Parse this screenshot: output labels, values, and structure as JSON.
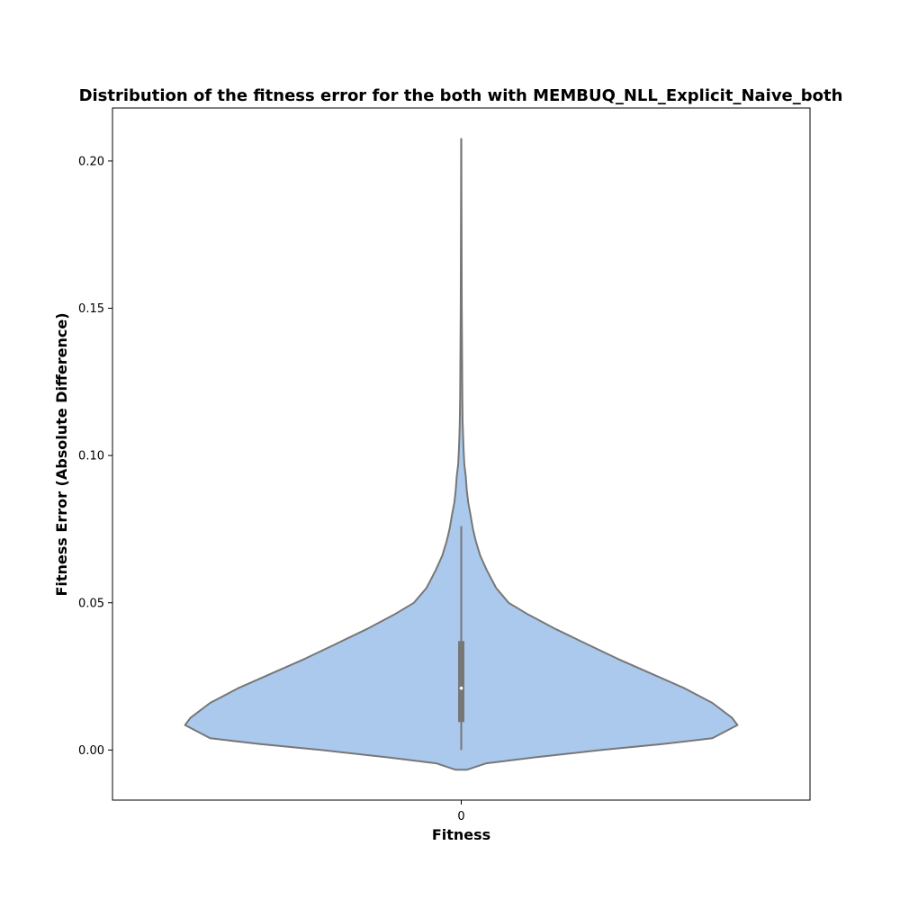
{
  "chart_data": {
    "type": "violin",
    "title": "Distribution of the fitness error for the both with MEMBUQ_NLL_Explicit_Naive_both",
    "xlabel": "Fitness",
    "ylabel": "Fitness Error (Absolute Difference)",
    "categories": [
      "0"
    ],
    "ylim": [
      -0.017,
      0.218
    ],
    "yticks": [
      0.0,
      0.05,
      0.1,
      0.15,
      0.2
    ],
    "ytick_labels": [
      "0.00",
      "0.05",
      "0.10",
      "0.15",
      "0.20"
    ],
    "grid": false,
    "fill_color": "#abc9ec",
    "line_color": "#777777",
    "box": {
      "whisker_low": 0.0,
      "q1": 0.0095,
      "median": 0.021,
      "q3": 0.037,
      "whisker_high": 0.076
    },
    "density_profile": {
      "y": [
        -0.0067,
        -0.0045,
        -0.0025,
        0.0,
        0.002,
        0.004,
        0.0065,
        0.0085,
        0.011,
        0.016,
        0.021,
        0.026,
        0.031,
        0.036,
        0.041,
        0.046,
        0.05,
        0.055,
        0.061,
        0.066,
        0.071,
        0.075,
        0.08,
        0.084,
        0.088,
        0.093,
        0.097,
        0.102,
        0.107,
        0.112,
        0.12,
        0.13,
        0.14,
        0.15,
        0.17,
        0.19,
        0.2075
      ],
      "half_width": [
        0.02,
        0.09,
        0.26,
        0.5,
        0.72,
        0.9,
        0.95,
        0.99,
        0.97,
        0.9,
        0.8,
        0.68,
        0.56,
        0.45,
        0.34,
        0.24,
        0.17,
        0.125,
        0.092,
        0.068,
        0.052,
        0.042,
        0.033,
        0.025,
        0.02,
        0.016,
        0.011,
        0.0085,
        0.0065,
        0.005,
        0.004,
        0.0032,
        0.0025,
        0.002,
        0.0014,
        0.0008,
        0.0002
      ]
    }
  }
}
